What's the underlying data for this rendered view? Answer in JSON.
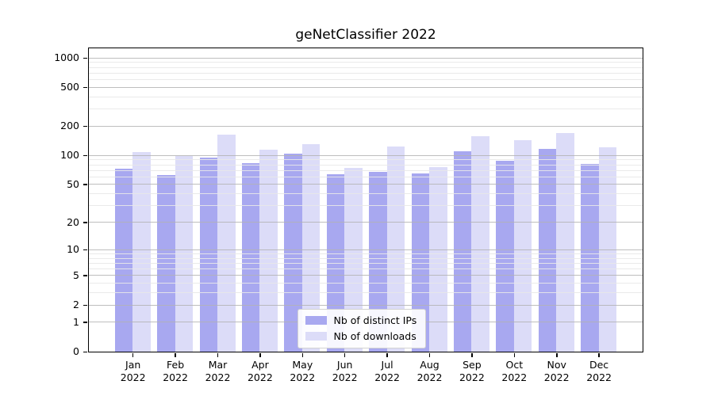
{
  "title": "geNetClassifier 2022",
  "chart_data": {
    "type": "bar",
    "title": "geNetClassifier 2022",
    "scale": "log1p",
    "grid": true,
    "legend_position": "lower-center",
    "categories": [
      "Jan",
      "Feb",
      "Mar",
      "Apr",
      "May",
      "Jun",
      "Jul",
      "Aug",
      "Sep",
      "Oct",
      "Nov",
      "Dec"
    ],
    "year_label": "2022",
    "series": [
      {
        "name": "Nb of distinct IPs",
        "color": "#a8a8f0",
        "values": [
          72,
          62,
          94,
          83,
          104,
          63,
          67,
          65,
          110,
          87,
          115,
          81
        ]
      },
      {
        "name": "Nb of downloads",
        "color": "#dcdcf8",
        "values": [
          107,
          97,
          162,
          113,
          130,
          73,
          122,
          75,
          157,
          143,
          168,
          120
        ]
      }
    ],
    "yticks": [
      0,
      1,
      2,
      5,
      10,
      20,
      50,
      100,
      200,
      500,
      1000
    ],
    "minor_gridlines": [
      3,
      4,
      6,
      7,
      8,
      9,
      30,
      40,
      60,
      70,
      80,
      90,
      300,
      400,
      600,
      700,
      800,
      900
    ],
    "ylim": [
      0,
      1250
    ]
  }
}
